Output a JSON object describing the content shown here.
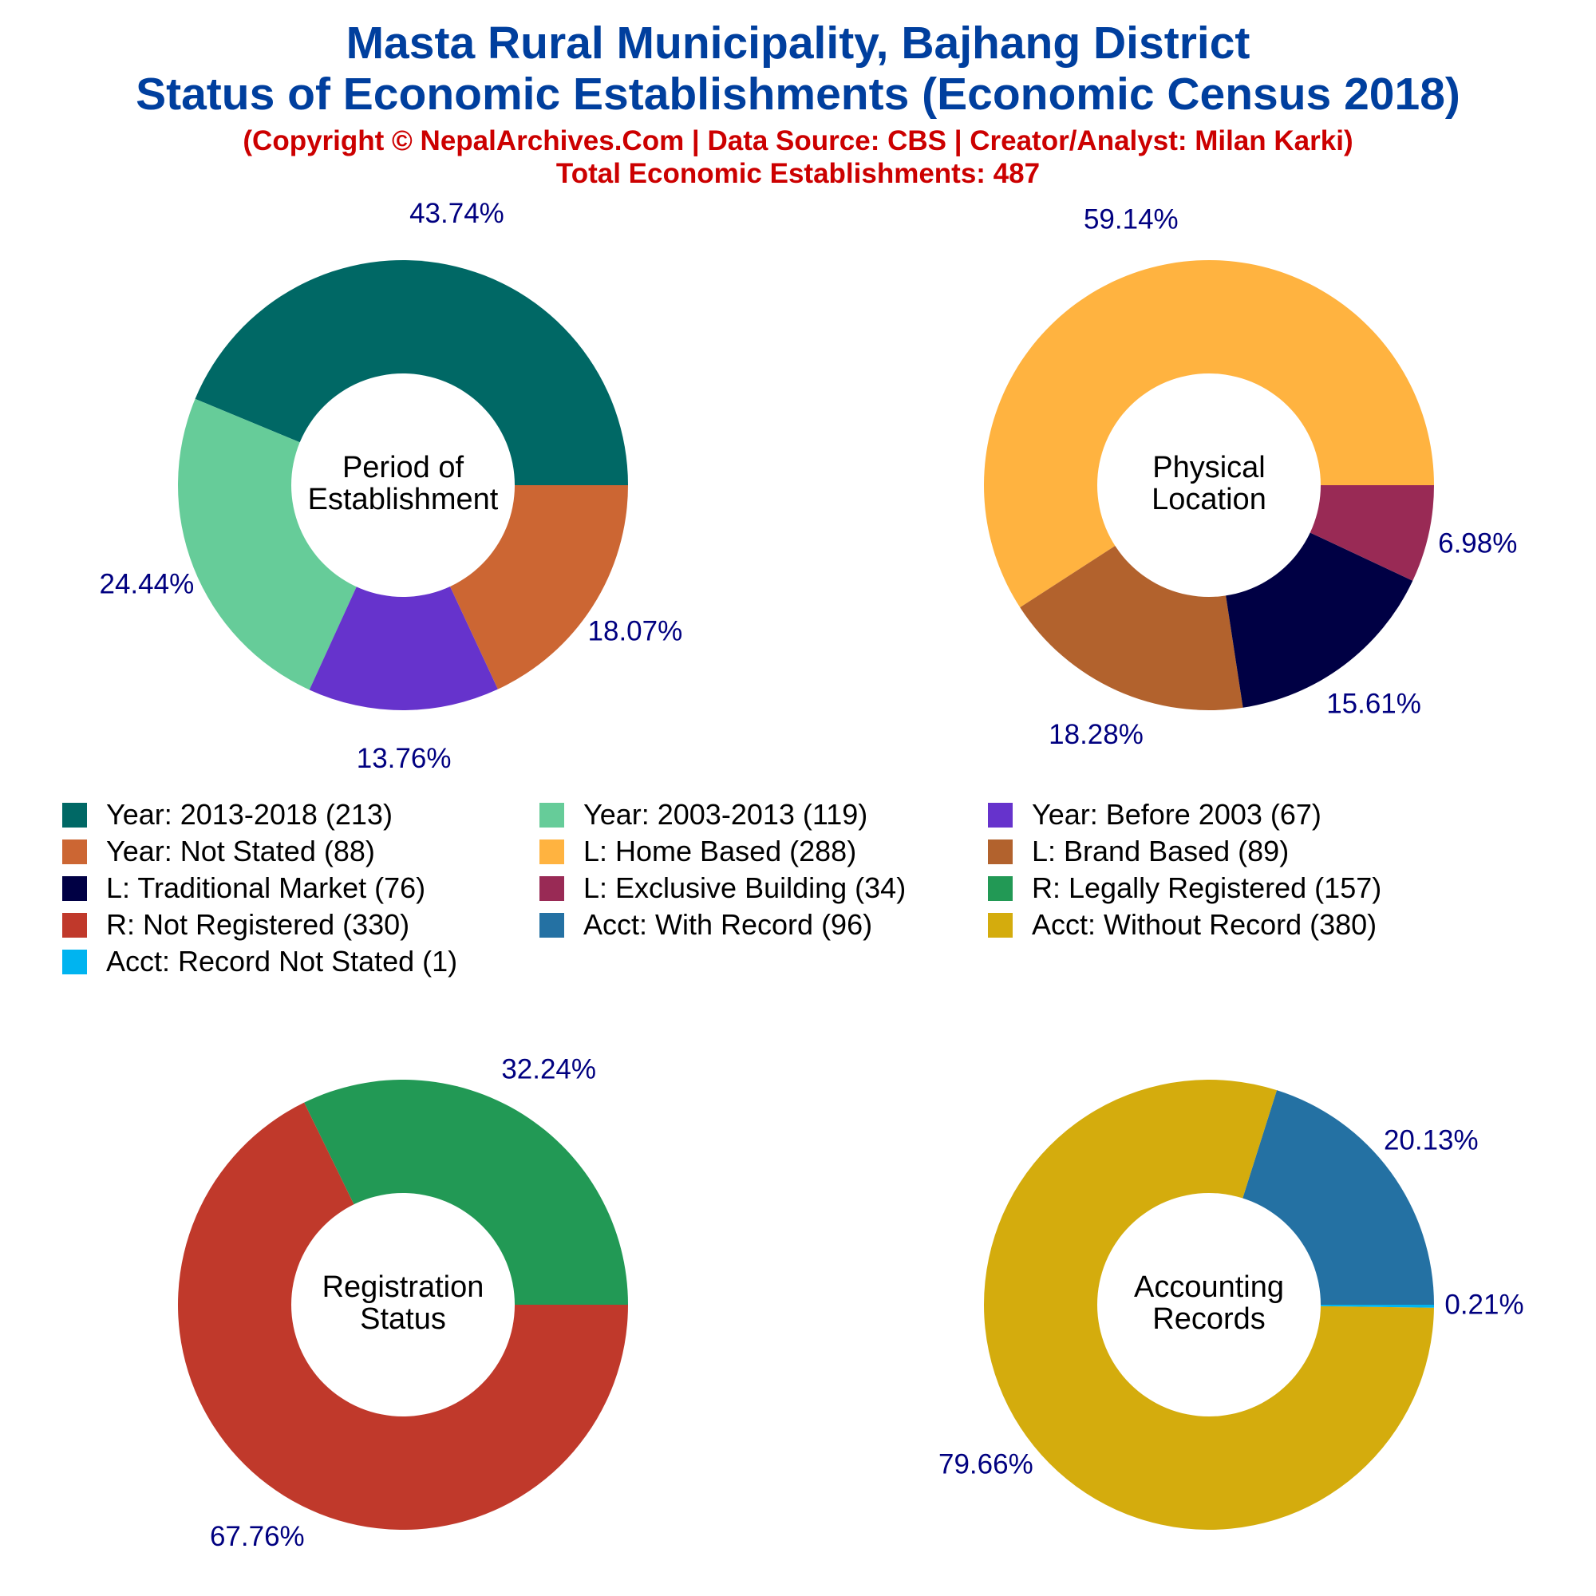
{
  "header": {
    "title_line1": "Masta Rural Municipality, Bajhang District",
    "title_line2": "Status of Economic Establishments (Economic Census 2018)",
    "copyright": "(Copyright © NepalArchives.Com | Data Source: CBS | Creator/Analyst: Milan Karki)",
    "total": "Total Economic Establishments: 487"
  },
  "legend": [
    {
      "label": "Year: 2013-2018 (213)",
      "color": "#006865"
    },
    {
      "label": "Year: 2003-2013 (119)",
      "color": "#66cc99"
    },
    {
      "label": "Year: Before 2003 (67)",
      "color": "#6633cc"
    },
    {
      "label": "Year: Not Stated (88)",
      "color": "#cc6633"
    },
    {
      "label": "L: Home Based (288)",
      "color": "#ffb340"
    },
    {
      "label": "L: Brand Based (89)",
      "color": "#b2622d"
    },
    {
      "label": "L: Traditional Market (76)",
      "color": "#000044"
    },
    {
      "label": "L: Exclusive Building (34)",
      "color": "#992a55"
    },
    {
      "label": "R: Legally Registered (157)",
      "color": "#229955"
    },
    {
      "label": "R: Not Registered (330)",
      "color": "#c0392b"
    },
    {
      "label": "Acct: With Record (96)",
      "color": "#2471a3"
    },
    {
      "label": "Acct: Without Record (380)",
      "color": "#d4ac0d"
    },
    {
      "label": "Acct: Record Not Stated (1)",
      "color": "#00b4f0"
    }
  ],
  "chart_data": [
    {
      "type": "pie",
      "center_label": [
        "Period of",
        "Establishment"
      ],
      "categories": [
        "Year: 2013-2018",
        "Year: 2003-2013",
        "Year: Before 2003",
        "Year: Not Stated"
      ],
      "values": [
        213,
        119,
        67,
        88
      ],
      "percent_labels": [
        "43.74%",
        "24.44%",
        "13.76%",
        "18.07%"
      ],
      "colors": [
        "#006865",
        "#66cc99",
        "#6633cc",
        "#cc6633"
      ]
    },
    {
      "type": "pie",
      "center_label": [
        "Physical",
        "Location"
      ],
      "categories": [
        "L: Home Based",
        "L: Brand Based",
        "L: Traditional Market",
        "L: Exclusive Building"
      ],
      "values": [
        288,
        89,
        76,
        34
      ],
      "percent_labels": [
        "59.14%",
        "18.28%",
        "15.61%",
        "6.98%"
      ],
      "colors": [
        "#ffb340",
        "#b2622d",
        "#000044",
        "#992a55"
      ]
    },
    {
      "type": "pie",
      "center_label": [
        "Registration",
        "Status"
      ],
      "categories": [
        "R: Legally Registered",
        "R: Not Registered"
      ],
      "values": [
        157,
        330
      ],
      "percent_labels": [
        "32.24%",
        "67.76%"
      ],
      "colors": [
        "#229955",
        "#c0392b"
      ]
    },
    {
      "type": "pie",
      "center_label": [
        "Accounting",
        "Records"
      ],
      "categories": [
        "Acct: With Record",
        "Acct: Without Record",
        "Acct: Record Not Stated"
      ],
      "values": [
        96,
        380,
        1
      ],
      "percent_labels": [
        "20.13%",
        "79.66%",
        "0.21%"
      ],
      "colors": [
        "#2471a3",
        "#d4ac0d",
        "#00b4f0"
      ]
    }
  ]
}
